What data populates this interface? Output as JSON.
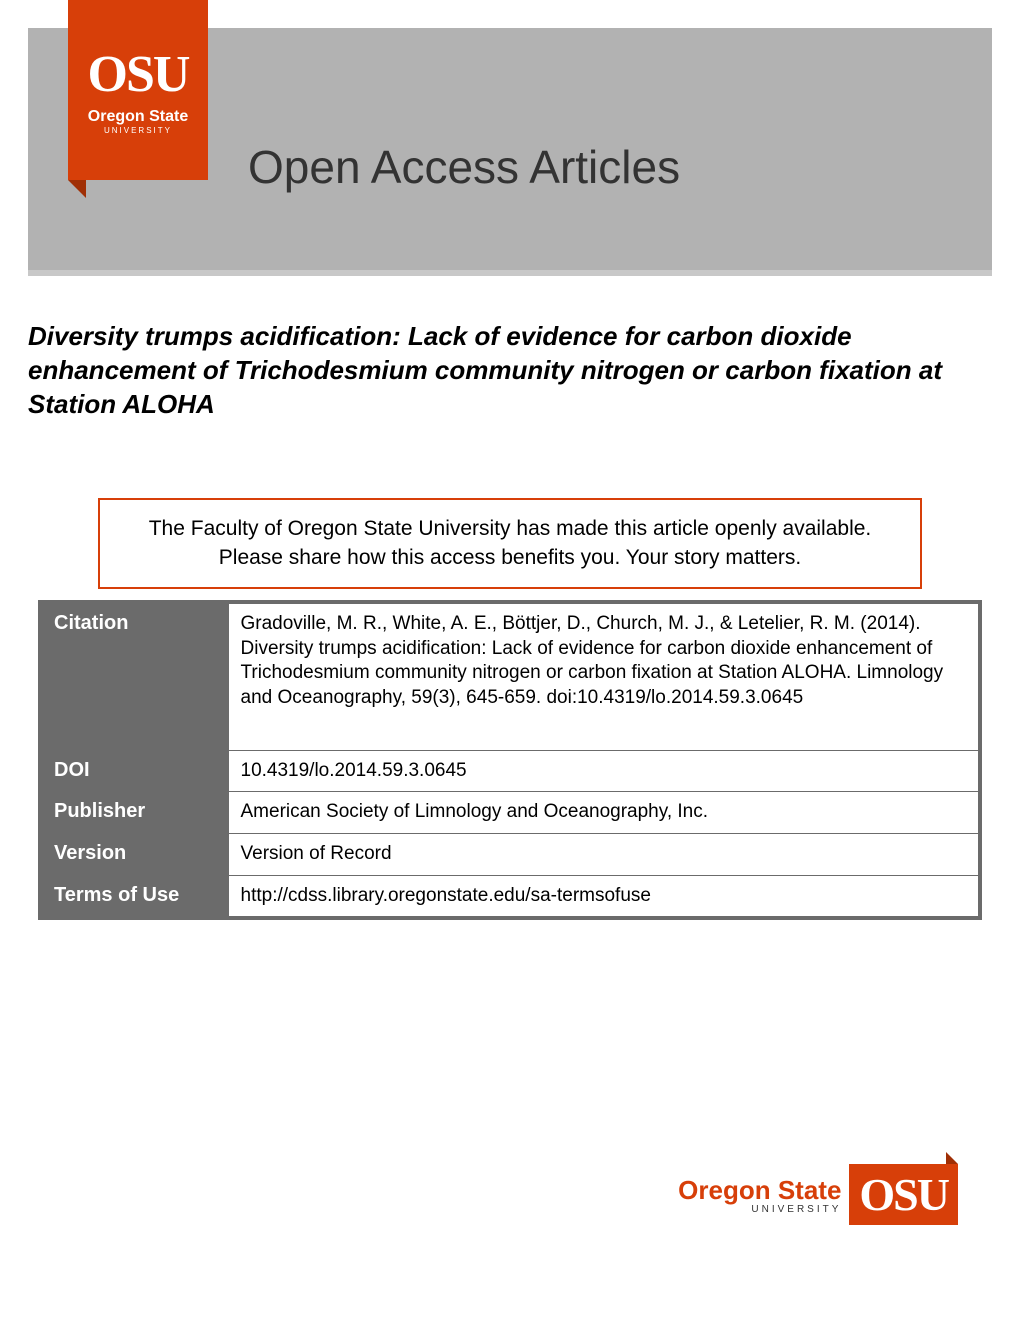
{
  "header": {
    "logo_main": "OSU",
    "logo_subtitle": "Oregon State",
    "logo_university": "UNIVERSITY",
    "banner_title": "Open Access Articles"
  },
  "article": {
    "title": "Diversity trumps acidification: Lack of evidence for carbon dioxide enhancement of Trichodesmium community nitrogen or carbon fixation at Station ALOHA"
  },
  "notice": {
    "line1": "The Faculty of Oregon State University has made this article openly available.",
    "line2": "Please share how this access benefits you. Your story matters."
  },
  "metadata": {
    "citation_label": "Citation",
    "citation_value": "Gradoville, M. R., White, A. E., Böttjer, D., Church, M. J., & Letelier, R. M. (2014). Diversity trumps acidification: Lack of evidence for carbon dioxide enhancement of Trichodesmium community nitrogen or carbon fixation at Station ALOHA. Limnology and Oceanography, 59(3), 645-659. doi:10.4319/lo.2014.59.3.0645",
    "doi_label": "DOI",
    "doi_value": "10.4319/lo.2014.59.3.0645",
    "publisher_label": "Publisher",
    "publisher_value": "American Society of Limnology and Oceanography, Inc.",
    "version_label": "Version",
    "version_value": "Version of Record",
    "terms_label": "Terms of Use",
    "terms_value": "http://cdss.library.oregonstate.edu/sa-termsofuse"
  },
  "footer": {
    "oregon_state": "Oregon State",
    "university": "UNIVERSITY",
    "osu": "OSU"
  }
}
